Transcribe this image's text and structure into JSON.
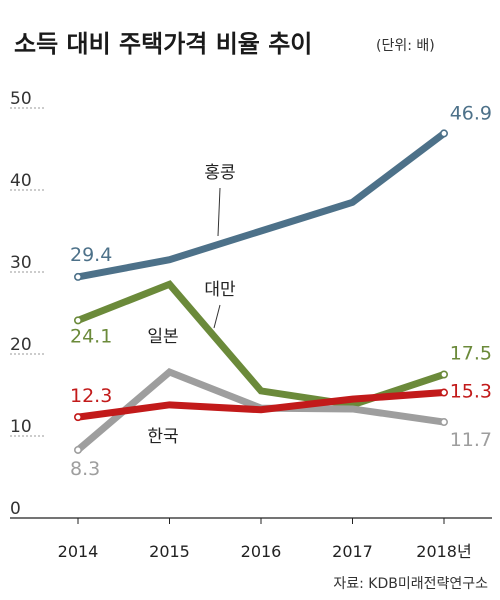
{
  "chart_data": {
    "type": "line",
    "title": "소득 대비 주택가격 비율 추이",
    "unit": "(단위: 배)",
    "source": "자료: KDB미래전략연구소",
    "x": [
      "2014",
      "2015",
      "2016",
      "2017",
      "2018년"
    ],
    "ylim": [
      0,
      50
    ],
    "yticks": [
      "0",
      "10",
      "20",
      "30",
      "40",
      "50"
    ],
    "grid": false,
    "series": [
      {
        "name": "홍콩",
        "color": "#4d7189",
        "values": [
          29.4,
          31.5,
          35.0,
          38.5,
          46.9
        ],
        "start_label": "29.4",
        "end_label": "46.9"
      },
      {
        "name": "대만",
        "color": "#6b8a3a",
        "values": [
          24.1,
          28.5,
          15.5,
          13.8,
          17.5
        ],
        "start_label": "24.1",
        "end_label": "17.5"
      },
      {
        "name": "일본",
        "color": "#9e9e9e",
        "values": [
          8.3,
          17.8,
          13.4,
          13.3,
          11.7
        ],
        "start_label": "8.3",
        "end_label": "11.7"
      },
      {
        "name": "한국",
        "color": "#c21a1a",
        "values": [
          12.3,
          13.8,
          13.2,
          14.5,
          15.3
        ],
        "start_label": "12.3",
        "end_label": "15.3"
      }
    ]
  }
}
